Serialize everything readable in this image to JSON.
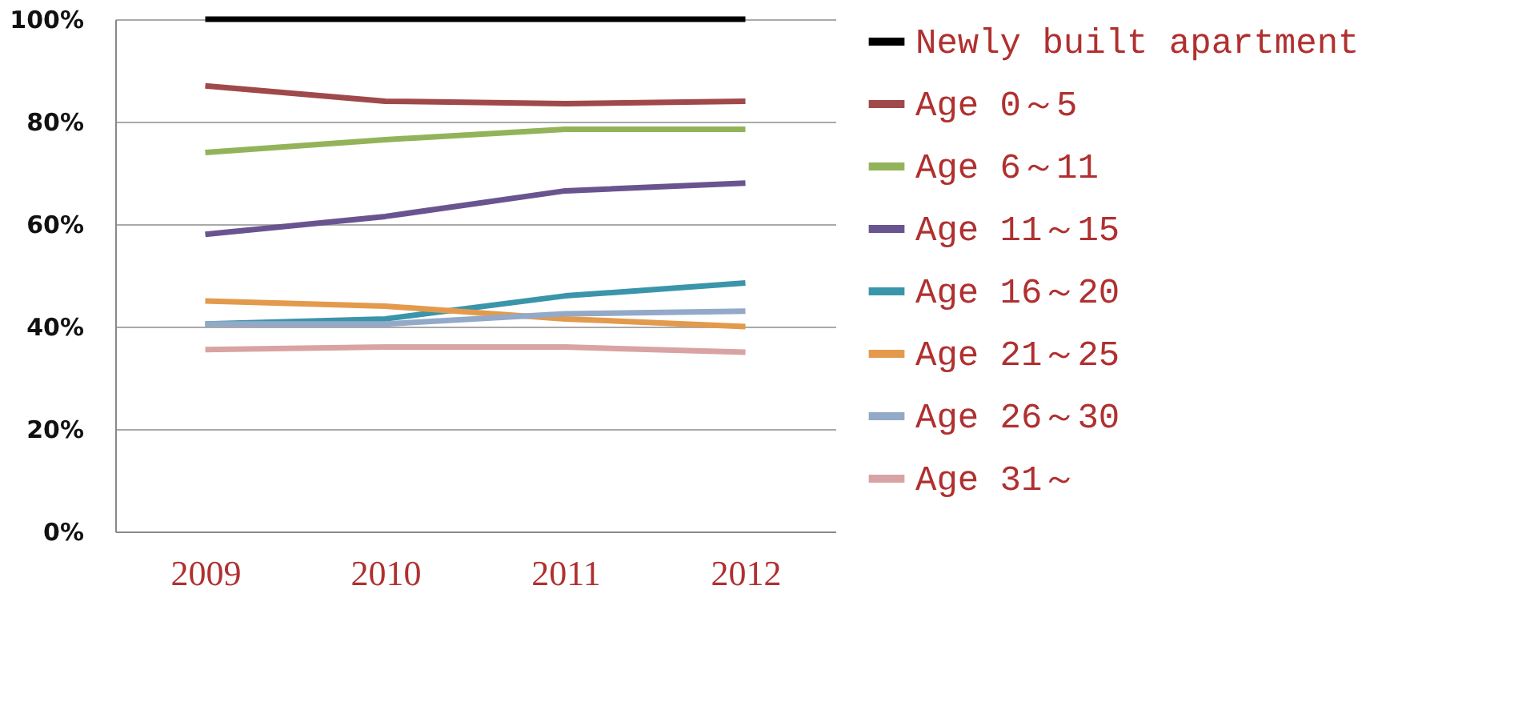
{
  "chart_data": {
    "type": "line",
    "categories": [
      "2009",
      "2010",
      "2011",
      "2012"
    ],
    "ylim": [
      0,
      100
    ],
    "yticks": [
      {
        "value": 0,
        "label": "0%"
      },
      {
        "value": 20,
        "label": "20%"
      },
      {
        "value": 40,
        "label": "40%"
      },
      {
        "value": 60,
        "label": "60%"
      },
      {
        "value": 80,
        "label": "80%"
      },
      {
        "value": 100,
        "label": "100%"
      }
    ],
    "grid": "y",
    "legend": "right",
    "marker": "none",
    "line_style": "solid",
    "series": [
      {
        "name": "Newly built apartment",
        "color": "#000000",
        "values": [
          100,
          100,
          100,
          100
        ]
      },
      {
        "name": "Age 0～5",
        "color": "#a0494a",
        "values": [
          87,
          84,
          83.5,
          84
        ]
      },
      {
        "name": "Age 6～11",
        "color": "#93b35a",
        "values": [
          74,
          76.5,
          78.5,
          78.5
        ]
      },
      {
        "name": "Age 11～15",
        "color": "#6a5490",
        "values": [
          58,
          61.5,
          66.5,
          68
        ]
      },
      {
        "name": "Age 16～20",
        "color": "#3a95aa",
        "values": [
          40.5,
          41.5,
          46,
          48.5
        ]
      },
      {
        "name": "Age 21～25",
        "color": "#e39a4c",
        "values": [
          45,
          44,
          41.5,
          40
        ]
      },
      {
        "name": "Age 26～30",
        "color": "#93a9c8",
        "values": [
          40.5,
          40.5,
          42.5,
          43
        ]
      },
      {
        "name": "Age 31～",
        "color": "#d9a3a3",
        "values": [
          35.5,
          36,
          36,
          35
        ]
      }
    ]
  }
}
